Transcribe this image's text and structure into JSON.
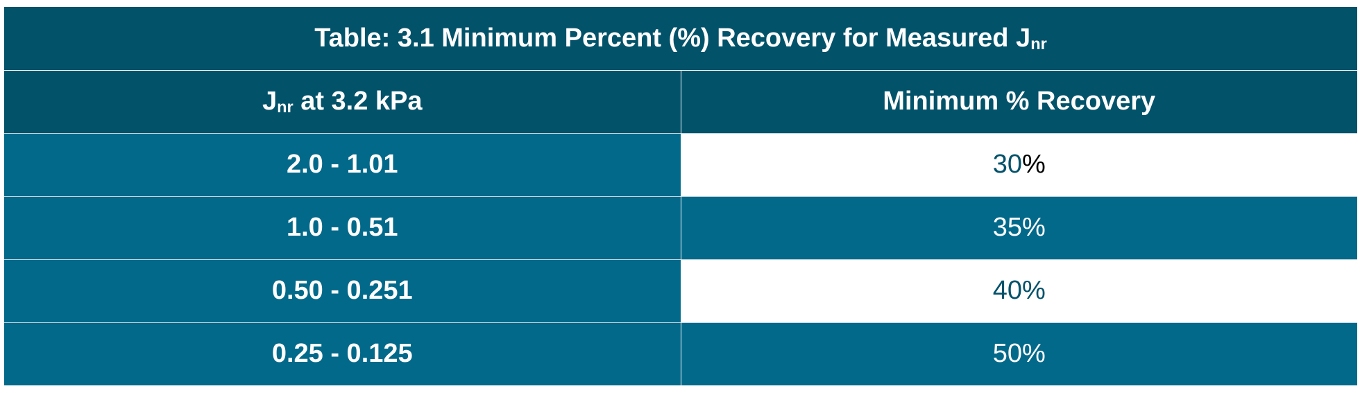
{
  "table": {
    "title_prefix": "Table: 3.1 Minimum Percent (%) Recovery for Measured J",
    "title_sub": "nr",
    "headers": {
      "col1_prefix": "J",
      "col1_sub": "nr",
      "col1_suffix": " at 3.2 kPa",
      "col2": "Minimum % Recovery"
    },
    "rows": [
      {
        "range": "2.0 - 1.01",
        "value_num": "30",
        "value_sym": "%"
      },
      {
        "range": "1.0 - 0.51",
        "value_num": "35",
        "value_sym": "%"
      },
      {
        "range": "0.50 - 0.251",
        "value_num": "40",
        "value_sym": "%"
      },
      {
        "range": "0.25 - 0.125",
        "value_num": "50",
        "value_sym": "%"
      }
    ]
  },
  "colors": {
    "header_dark": "#02526a",
    "row_teal": "#02698a",
    "white": "#ffffff"
  }
}
